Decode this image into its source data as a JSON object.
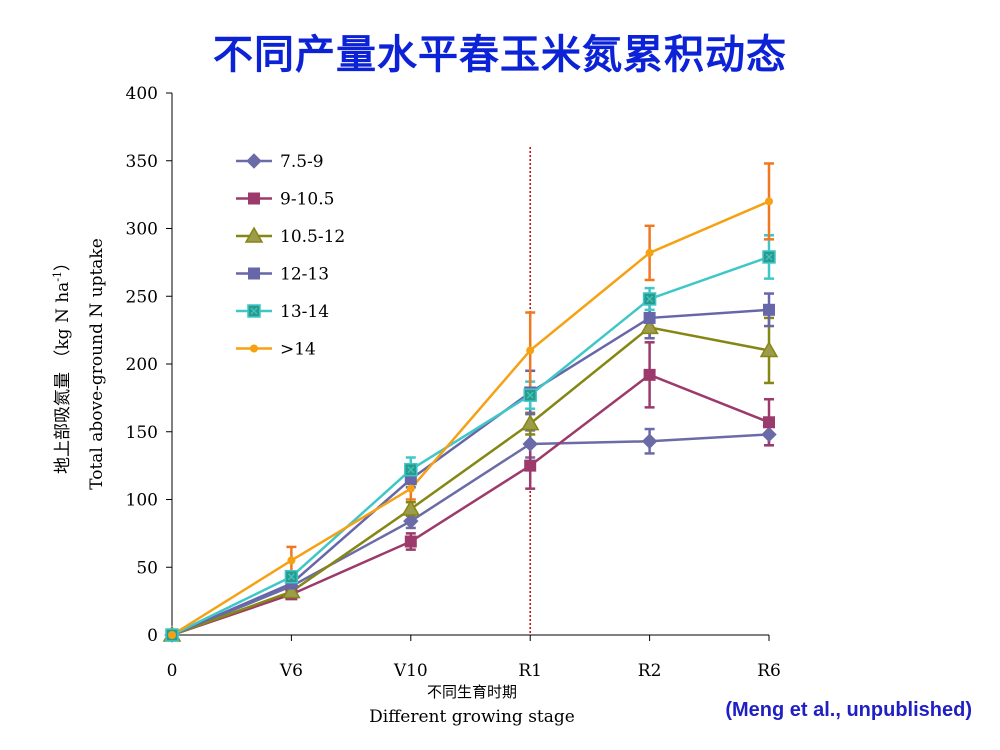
{
  "title": "不同产量水平春玉米氮累积动态",
  "citation": "(Meng et al., unpublished)",
  "chart_data": {
    "type": "line",
    "title": "不同产量水平春玉米氮累积动态",
    "categories": [
      "0",
      "V6",
      "V10",
      "R1",
      "R2",
      "R6"
    ],
    "xlabel_cn": "不同生育时期",
    "xlabel": "Different growing stage",
    "ylabel_cn": "地上部吸氮量 （kg N ha",
    "ylabel_cn_sup": "-1",
    "ylabel_cn_end": "）",
    "ylabel": "Total above-ground N uptake",
    "ylim": [
      0,
      400
    ],
    "yticks": [
      0,
      50,
      100,
      150,
      200,
      250,
      300,
      350,
      400
    ],
    "reference_line": {
      "category": "R1",
      "style": "dotted",
      "color": "#cc0000"
    },
    "legend_position": "upper-left",
    "series": [
      {
        "name": "7.5-9",
        "color": "#6b6ba8",
        "marker": "diamond",
        "values": [
          0,
          36,
          84,
          141,
          143,
          148
        ],
        "errors": [
          0,
          3,
          5,
          10,
          9,
          8
        ]
      },
      {
        "name": "9-10.5",
        "color": "#9c3a6b",
        "marker": "square",
        "values": [
          0,
          30,
          69,
          125,
          192,
          157
        ],
        "errors": [
          0,
          2,
          6,
          17,
          24,
          17
        ]
      },
      {
        "name": "10.5-12",
        "color": "#868614",
        "marker": "triangle",
        "values": [
          0,
          32,
          93,
          156,
          227,
          210
        ],
        "errors": [
          0,
          3,
          5,
          8,
          8,
          24
        ]
      },
      {
        "name": "12-13",
        "color": "#6666a8",
        "marker": "square",
        "values": [
          0,
          38,
          115,
          179,
          234,
          240
        ],
        "errors": [
          0,
          4,
          6,
          16,
          15,
          12
        ]
      },
      {
        "name": "13-14",
        "color": "#3fc7c7",
        "marker": "squarex",
        "values": [
          0,
          43,
          122,
          177,
          248,
          279
        ],
        "errors": [
          0,
          3,
          9,
          10,
          8,
          16
        ]
      },
      {
        "name": ">14",
        "color": "#f5a113",
        "marker": "circle",
        "values": [
          0,
          55,
          108,
          210,
          282,
          320
        ],
        "errors": [
          0,
          10,
          8,
          28,
          20,
          28
        ],
        "errorColor": "#f07820"
      }
    ]
  }
}
